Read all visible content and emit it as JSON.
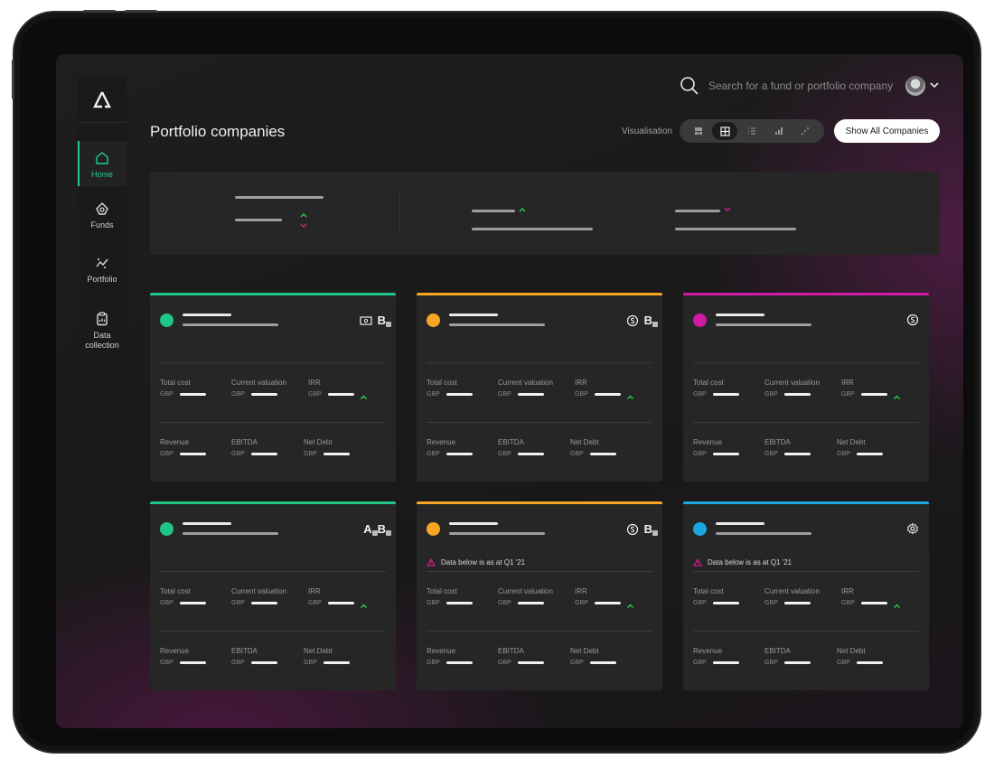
{
  "app": {
    "search_placeholder": "Search for a fund or portfolio company",
    "page_title": "Portfolio companies",
    "visualisation_label": "Visualisation",
    "show_all_label": "Show All Companies"
  },
  "sidebar": {
    "items": [
      {
        "label": "Home",
        "icon": "home-icon",
        "active": true
      },
      {
        "label": "Funds",
        "icon": "funds-icon",
        "active": false
      },
      {
        "label": "Portfolio",
        "icon": "portfolio-icon",
        "active": false
      },
      {
        "label": "Data collection",
        "icon": "clipboard-icon",
        "active": false
      }
    ]
  },
  "visualisation_modes": [
    {
      "icon": "layout-icon",
      "active": false
    },
    {
      "icon": "grid-icon",
      "active": true
    },
    {
      "icon": "list-icon",
      "active": false
    },
    {
      "icon": "bar-chart-icon",
      "active": false
    },
    {
      "icon": "scatter-icon",
      "active": false
    }
  ],
  "colors": {
    "green": "#1fc787",
    "orange": "#f5a623",
    "magenta": "#e61fb8",
    "blue": "#1aa7e0",
    "up": "#2ad14a",
    "down": "#d81f8c",
    "warning": "#e0208f"
  },
  "card_labels": {
    "total_cost": "Total cost",
    "current_valuation": "Current valuation",
    "irr": "IRR",
    "revenue": "Revenue",
    "ebitda": "EBITDA",
    "net_debt": "Net Debt",
    "currency": "GBP"
  },
  "cards": [
    {
      "accent": "#1fc787",
      "badges": [
        "cash-icon",
        "B"
      ],
      "warning": ""
    },
    {
      "accent": "#f5a623",
      "badges": [
        "coin-icon",
        "B"
      ],
      "warning": ""
    },
    {
      "accent": "#d11aa6",
      "badges": [
        "coin-icon"
      ],
      "warning": ""
    },
    {
      "accent": "#1fc787",
      "badges": [
        "A",
        "B"
      ],
      "warning": ""
    },
    {
      "accent": "#f5a623",
      "badges": [
        "coin-icon",
        "B"
      ],
      "warning": "Data below is as at Q1 '21"
    },
    {
      "accent": "#1aa7e0",
      "badges": [
        "gear-icon"
      ],
      "warning": "Data below is as at Q1 '21"
    }
  ]
}
